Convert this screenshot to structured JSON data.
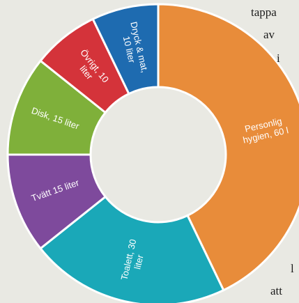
{
  "chart_data": {
    "type": "pie",
    "donut": true,
    "unit": "liter",
    "slices": [
      {
        "name": "Personlig hygien",
        "value": 60,
        "label": [
          "Personlig",
          "hygien, 60 l"
        ],
        "color": "#e88c3a"
      },
      {
        "name": "Toalett",
        "value": 30,
        "label": [
          "Toalett, 30",
          "liter"
        ],
        "color": "#1aa8b8"
      },
      {
        "name": "Tvätt",
        "value": 15,
        "label": [
          "Tvätt 15 liter"
        ],
        "color": "#7e4a9c"
      },
      {
        "name": "Disk",
        "value": 15,
        "label": [
          "Disk, 15 liter"
        ],
        "color": "#7fb03a"
      },
      {
        "name": "Övrigt",
        "value": 10,
        "label": [
          "Övrigt, 10",
          "liter"
        ],
        "color": "#d4333a"
      },
      {
        "name": "Dryck & mat",
        "value": 10,
        "label": [
          "Dryck & mat,",
          "10 liter"
        ],
        "color": "#1e6bb0"
      }
    ]
  },
  "side_text": {
    "line1": "tappa",
    "line2": "av",
    "line3": "i",
    "line4": "l",
    "line5": "att"
  }
}
